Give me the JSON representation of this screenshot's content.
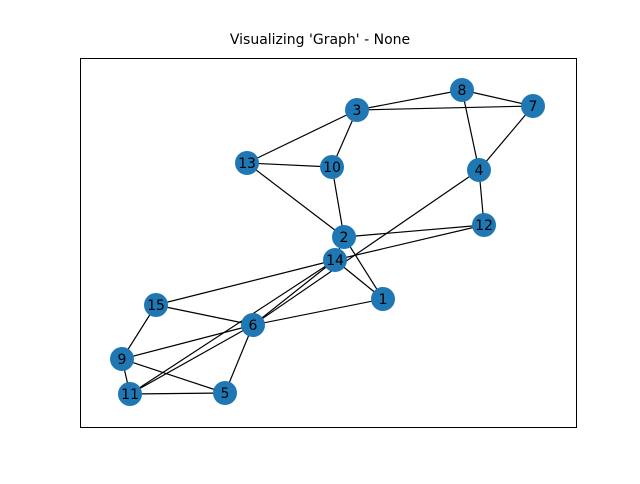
{
  "title": "Visualizing 'Graph' - None",
  "colors": {
    "node": "#1f77b4",
    "edge": "#000000",
    "label": "#000000",
    "frame": "#000000"
  },
  "graph": {
    "nodes": [
      "1",
      "2",
      "3",
      "4",
      "5",
      "6",
      "7",
      "8",
      "9",
      "10",
      "11",
      "12",
      "13",
      "14",
      "15"
    ],
    "edges": [
      [
        "3",
        "8"
      ],
      [
        "3",
        "7"
      ],
      [
        "8",
        "7"
      ],
      [
        "8",
        "4"
      ],
      [
        "7",
        "4"
      ],
      [
        "3",
        "13"
      ],
      [
        "3",
        "10"
      ],
      [
        "13",
        "10"
      ],
      [
        "13",
        "2"
      ],
      [
        "10",
        "2"
      ],
      [
        "4",
        "12"
      ],
      [
        "4",
        "6"
      ],
      [
        "2",
        "12"
      ],
      [
        "2",
        "14"
      ],
      [
        "2",
        "1"
      ],
      [
        "12",
        "14"
      ],
      [
        "14",
        "1"
      ],
      [
        "14",
        "15"
      ],
      [
        "14",
        "6"
      ],
      [
        "14",
        "11"
      ],
      [
        "1",
        "6"
      ],
      [
        "15",
        "6"
      ],
      [
        "15",
        "9"
      ],
      [
        "6",
        "9"
      ],
      [
        "6",
        "5"
      ],
      [
        "6",
        "11"
      ],
      [
        "9",
        "11"
      ],
      [
        "9",
        "5"
      ],
      [
        "11",
        "5"
      ]
    ]
  }
}
